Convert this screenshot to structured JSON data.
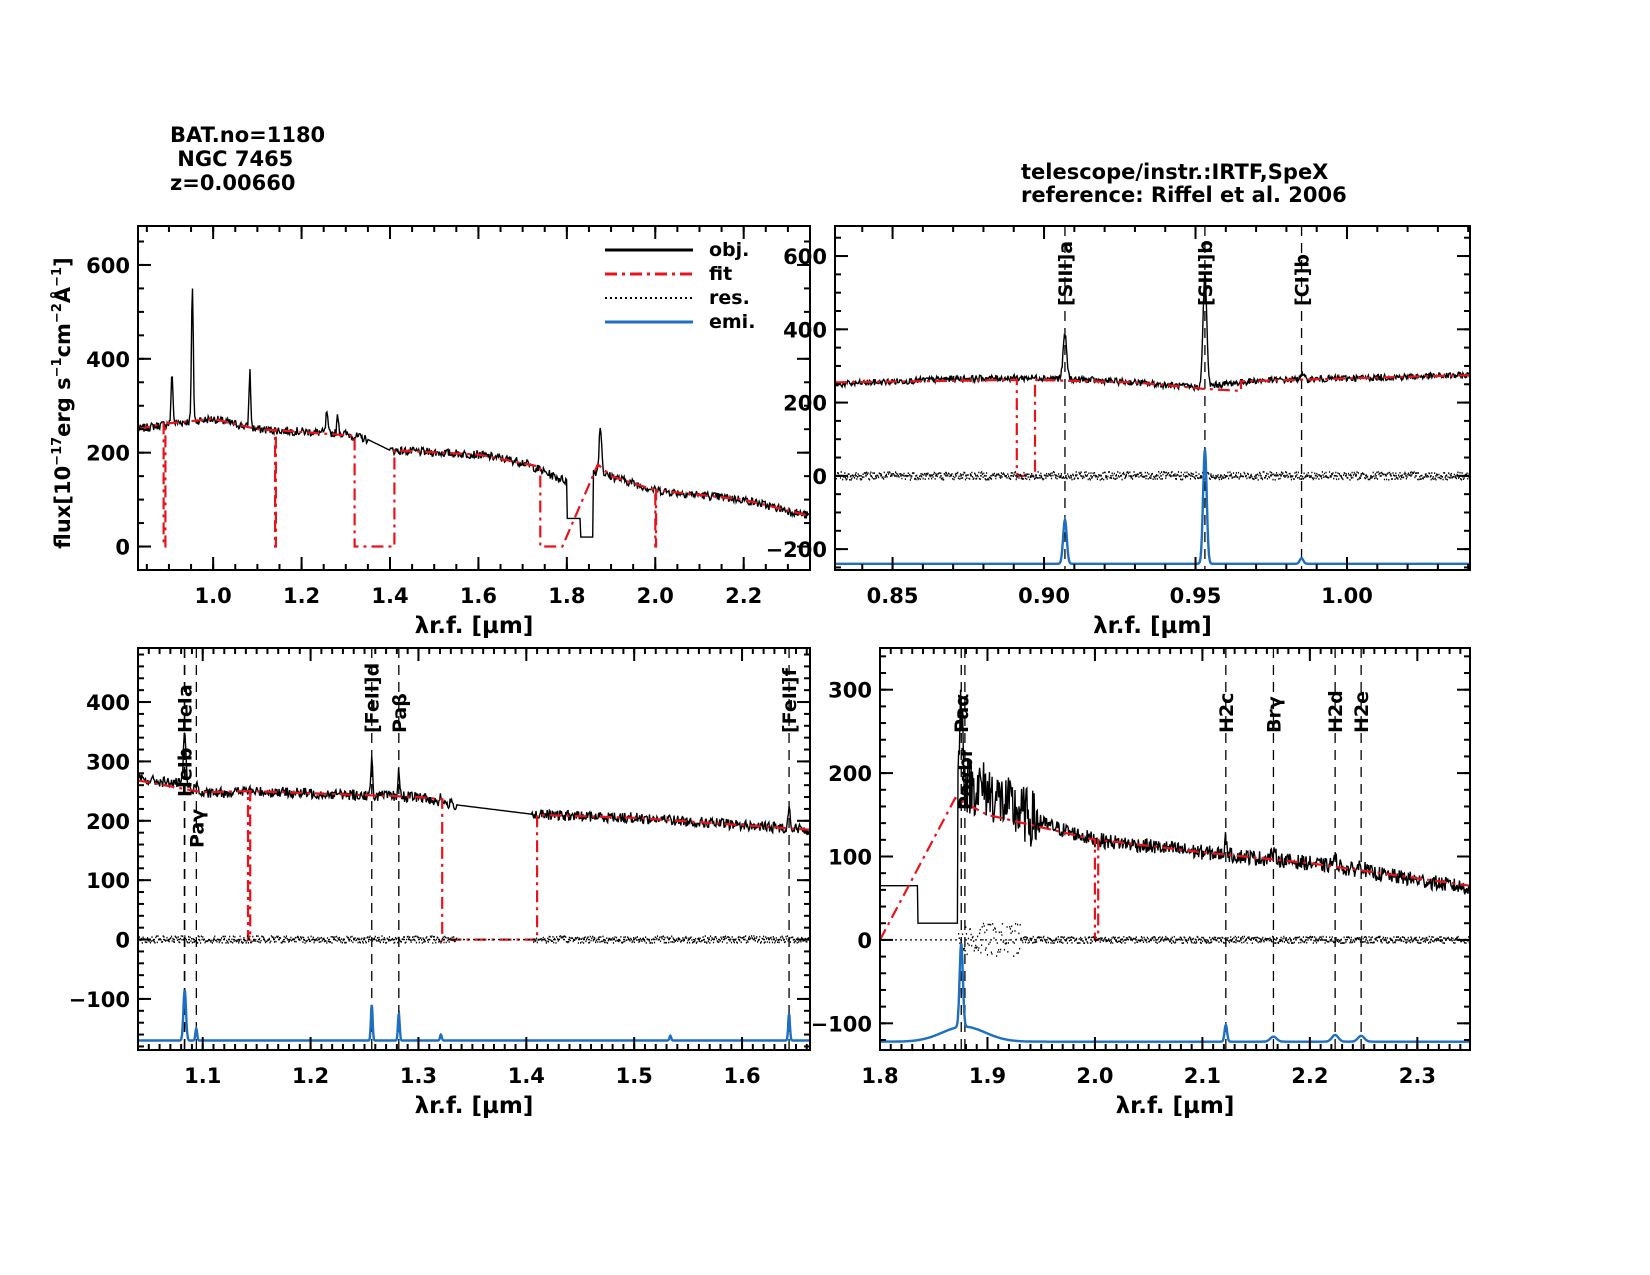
{
  "header": {
    "bat_no": "BAT.no=1180",
    "name": " NGC 7465",
    "redshift": "z=0.00660",
    "telescope": "telescope/instr.:IRTF,SpeX",
    "reference": "reference: Riffel et al. 2006"
  },
  "legend": [
    {
      "label": "obj.",
      "color": "#000000",
      "style": "solid"
    },
    {
      "label": "fit",
      "color": "#e8141c",
      "style": "dashdot"
    },
    {
      "label": "res.",
      "color": "#000000",
      "style": "dotted"
    },
    {
      "label": "emi.",
      "color": "#1f6fc0",
      "style": "solid"
    }
  ],
  "chart_data": [
    {
      "type": "line",
      "panel": "full spectrum",
      "xlabel": "λr.f. [µm]",
      "ylabel": "flux[10^-17 erg s^-1 cm^-2 Å^-1]",
      "xlim": [
        0.83,
        2.35
      ],
      "ylim": [
        -50,
        683
      ],
      "xticks": [
        1.0,
        1.2,
        1.4,
        1.6,
        1.8,
        2.0,
        2.2
      ],
      "xtick_labels": [
        "1.0",
        "1.2",
        "1.4",
        "1.6",
        "1.8",
        "2.0",
        "2.2"
      ],
      "xminor": 0.05,
      "yticks": [
        0,
        200,
        400,
        600
      ],
      "ytick_labels": [
        "0",
        "200",
        "400",
        "600"
      ],
      "yminor": 50,
      "legend": "top-right",
      "obj": [
        [
          0.83,
          250
        ],
        [
          0.9,
          262
        ],
        [
          1.0,
          272
        ],
        [
          1.1,
          250
        ],
        [
          1.3,
          240
        ],
        [
          1.35,
          228
        ],
        [
          1.4,
          205
        ],
        [
          1.6,
          196
        ],
        [
          1.7,
          180
        ],
        [
          1.77,
          150
        ],
        [
          1.8,
          140
        ],
        [
          1.8,
          60
        ],
        [
          1.83,
          60
        ],
        [
          1.83,
          20
        ],
        [
          1.86,
          20
        ],
        [
          1.86,
          160
        ],
        [
          1.9,
          150
        ],
        [
          2.0,
          120
        ],
        [
          2.2,
          100
        ],
        [
          2.35,
          65
        ]
      ],
      "obj_noise_gaps": [
        [
          1.35,
          1.4
        ],
        [
          1.8,
          1.86
        ]
      ],
      "fit": [
        [
          0.83,
          250
        ],
        [
          0.888,
          262
        ],
        [
          0.888,
          0
        ],
        [
          0.892,
          0
        ],
        [
          0.892,
          262
        ],
        [
          1.0,
          272
        ],
        [
          1.1,
          250
        ],
        [
          1.14,
          248
        ],
        [
          1.14,
          0
        ],
        [
          1.142,
          0
        ],
        [
          1.142,
          248
        ],
        [
          1.32,
          236
        ],
        [
          1.32,
          0
        ],
        [
          1.41,
          0
        ],
        [
          1.41,
          205
        ],
        [
          1.6,
          196
        ],
        [
          1.74,
          170
        ],
        [
          1.74,
          0
        ],
        [
          1.79,
          0
        ],
        [
          1.87,
          175
        ],
        [
          1.9,
          150
        ],
        [
          2.0,
          120
        ],
        [
          2.0,
          0
        ],
        [
          2.002,
          0
        ],
        [
          2.002,
          120
        ],
        [
          2.2,
          100
        ],
        [
          2.35,
          65
        ]
      ],
      "residual": null,
      "emission_baseline": null,
      "lines": [
        {
          "wave": 0.907,
          "peak": 110,
          "sigma": 0.002
        },
        {
          "wave": 0.953,
          "peak": 290,
          "sigma": 0.002
        },
        {
          "wave": 1.083,
          "peak": 120,
          "sigma": 0.002
        },
        {
          "wave": 1.257,
          "peak": 45,
          "sigma": 0.002
        },
        {
          "wave": 1.282,
          "peak": 40,
          "sigma": 0.002
        },
        {
          "wave": 1.876,
          "peak": 100,
          "sigma": 0.003
        }
      ],
      "markers": []
    },
    {
      "type": "line",
      "panel": "0.83-1.04 µm",
      "xlabel": "λr.f. [µm]",
      "ylabel": "",
      "xlim": [
        0.831,
        1.0406
      ],
      "ylim": [
        -257,
        682
      ],
      "xticks": [
        0.85,
        0.9,
        0.95,
        1.0
      ],
      "xtick_labels": [
        "0.85",
        "0.90",
        "0.95",
        "1.00"
      ],
      "xminor": 0.01,
      "yticks": [
        -200,
        0,
        200,
        400,
        600
      ],
      "ytick_labels": [
        "−200",
        "0",
        "200",
        "400",
        "600"
      ],
      "yminor": 50,
      "obj": [
        [
          0.831,
          250
        ],
        [
          0.87,
          265
        ],
        [
          0.9,
          268
        ],
        [
          0.93,
          255
        ],
        [
          0.95,
          242
        ],
        [
          0.97,
          260
        ],
        [
          1.0406,
          275
        ]
      ],
      "obj_noise_gaps": [],
      "fit": [
        [
          0.831,
          255
        ],
        [
          0.891,
          262
        ],
        [
          0.891,
          0
        ],
        [
          0.897,
          0
        ],
        [
          0.897,
          262
        ],
        [
          0.93,
          255
        ],
        [
          0.95,
          240
        ],
        [
          0.952,
          238
        ],
        [
          0.965,
          232
        ],
        [
          0.965,
          258
        ],
        [
          1.0406,
          275
        ]
      ],
      "residual": {
        "offset": 0,
        "amp": 22
      },
      "emission_baseline": -240,
      "lines": [
        {
          "wave": 0.9069,
          "peak": 120,
          "sigma": 0.0006
        },
        {
          "wave": 0.9531,
          "peak": 310,
          "sigma": 0.0006
        },
        {
          "wave": 0.985,
          "peak": 15,
          "sigma": 0.0006
        }
      ],
      "markers": [
        {
          "wave": 0.9069,
          "label": "[SIII]a"
        },
        {
          "wave": 0.9531,
          "label": "[SIII]b"
        },
        {
          "wave": 0.985,
          "label": "[CI]b"
        }
      ]
    },
    {
      "type": "line",
      "panel": "1.04-1.66 µm",
      "xlabel": "λr.f. [µm]",
      "ylabel": "",
      "xlim": [
        1.04,
        1.663
      ],
      "ylim": [
        -186,
        491
      ],
      "xticks": [
        1.1,
        1.2,
        1.3,
        1.4,
        1.5,
        1.6
      ],
      "xtick_labels": [
        "1.1",
        "1.2",
        "1.3",
        "1.4",
        "1.5",
        "1.6"
      ],
      "xminor": 0.01,
      "yticks": [
        -100,
        0,
        100,
        200,
        300,
        400
      ],
      "ytick_labels": [
        "−100",
        "0",
        "100",
        "200",
        "300",
        "400"
      ],
      "yminor": 20,
      "obj": [
        [
          1.04,
          270
        ],
        [
          1.08,
          262
        ],
        [
          1.1,
          245
        ],
        [
          1.14,
          250
        ],
        [
          1.3,
          240
        ],
        [
          1.33,
          228
        ],
        [
          1.41,
          210
        ],
        [
          1.5,
          205
        ],
        [
          1.663,
          185
        ]
      ],
      "obj_noise_gaps": [
        [
          1.335,
          1.405
        ]
      ],
      "fit": [
        [
          1.04,
          268
        ],
        [
          1.1,
          248
        ],
        [
          1.142,
          250
        ],
        [
          1.142,
          0
        ],
        [
          1.144,
          0
        ],
        [
          1.144,
          250
        ],
        [
          1.3,
          240
        ],
        [
          1.322,
          236
        ],
        [
          1.322,
          0
        ],
        [
          1.41,
          0
        ],
        [
          1.41,
          210
        ],
        [
          1.5,
          205
        ],
        [
          1.663,
          185
        ]
      ],
      "residual": {
        "offset": 0,
        "amp": 12
      },
      "emission_baseline": -170,
      "lines": [
        {
          "wave": 1.0833,
          "peak": 85,
          "sigma": 0.0012
        },
        {
          "wave": 1.094,
          "peak": 20,
          "sigma": 0.0008
        },
        {
          "wave": 1.2567,
          "peak": 60,
          "sigma": 0.0008
        },
        {
          "wave": 1.2818,
          "peak": 45,
          "sigma": 0.0008
        },
        {
          "wave": 1.3208,
          "peak": 10,
          "sigma": 0.0008
        },
        {
          "wave": 1.5335,
          "peak": 8,
          "sigma": 0.0008
        },
        {
          "wave": 1.6436,
          "peak": 45,
          "sigma": 0.0008
        }
      ],
      "markers": [
        {
          "wave": 1.083,
          "label": "HeIa"
        },
        {
          "wave": 1.0833,
          "label": "HeIb"
        },
        {
          "wave": 1.0941,
          "label": "Paγ"
        },
        {
          "wave": 1.2567,
          "label": "[FeII]d"
        },
        {
          "wave": 1.2818,
          "label": "Paβ"
        },
        {
          "wave": 1.6436,
          "label": "[FeII]f"
        }
      ]
    },
    {
      "type": "line",
      "panel": "1.80-2.35 µm",
      "xlabel": "λr.f. [µm]",
      "ylabel": "",
      "xlim": [
        1.8,
        2.349
      ],
      "ylim": [
        -132,
        350
      ],
      "xticks": [
        1.8,
        1.9,
        2.0,
        2.1,
        2.2,
        2.3
      ],
      "xtick_labels": [
        "1.8",
        "1.9",
        "2.0",
        "2.1",
        "2.2",
        "2.3"
      ],
      "xminor": 0.01,
      "yticks": [
        -100,
        0,
        100,
        200,
        300
      ],
      "ytick_labels": [
        "−100",
        "0",
        "100",
        "200",
        "300"
      ],
      "yminor": 20,
      "obj": [
        [
          1.8,
          150
        ],
        [
          1.8,
          65
        ],
        [
          1.835,
          65
        ],
        [
          1.835,
          20
        ],
        [
          1.872,
          20
        ],
        [
          1.872,
          165
        ],
        [
          1.9,
          170
        ],
        [
          1.95,
          140
        ],
        [
          2.0,
          120
        ],
        [
          2.1,
          105
        ],
        [
          2.2,
          92
        ],
        [
          2.349,
          62
        ]
      ],
      "obj_noise_gaps": [
        [
          1.8,
          1.872
        ]
      ],
      "fit": [
        [
          1.8,
          0
        ],
        [
          1.87,
          170
        ],
        [
          1.9,
          150
        ],
        [
          1.95,
          135
        ],
        [
          2.0,
          120
        ],
        [
          2.0,
          0
        ],
        [
          2.003,
          0
        ],
        [
          2.003,
          120
        ],
        [
          2.1,
          105
        ],
        [
          2.2,
          92
        ],
        [
          2.349,
          65
        ]
      ],
      "residual": {
        "offset": 0,
        "amp": 8
      },
      "emission_baseline": -122,
      "lines": [
        {
          "wave": 1.8756,
          "peak": 100,
          "sigma": 0.0015
        },
        {
          "wave": 1.878,
          "peak": 18,
          "sigma": 0.02
        },
        {
          "wave": 2.1218,
          "peak": 20,
          "sigma": 0.0012
        },
        {
          "wave": 2.1661,
          "peak": 6,
          "sigma": 0.003
        },
        {
          "wave": 2.2235,
          "peak": 8,
          "sigma": 0.003
        },
        {
          "wave": 2.2477,
          "peak": 7,
          "sigma": 0.003
        }
      ],
      "markers": [
        {
          "wave": 1.8756,
          "label": "Paα"
        },
        {
          "wave": 1.879,
          "label": "Paαbr"
        },
        {
          "wave": 2.1218,
          "label": "H2c"
        },
        {
          "wave": 2.1661,
          "label": "Brγ"
        },
        {
          "wave": 2.2235,
          "label": "H2d"
        },
        {
          "wave": 2.2477,
          "label": "H2e"
        }
      ]
    }
  ]
}
